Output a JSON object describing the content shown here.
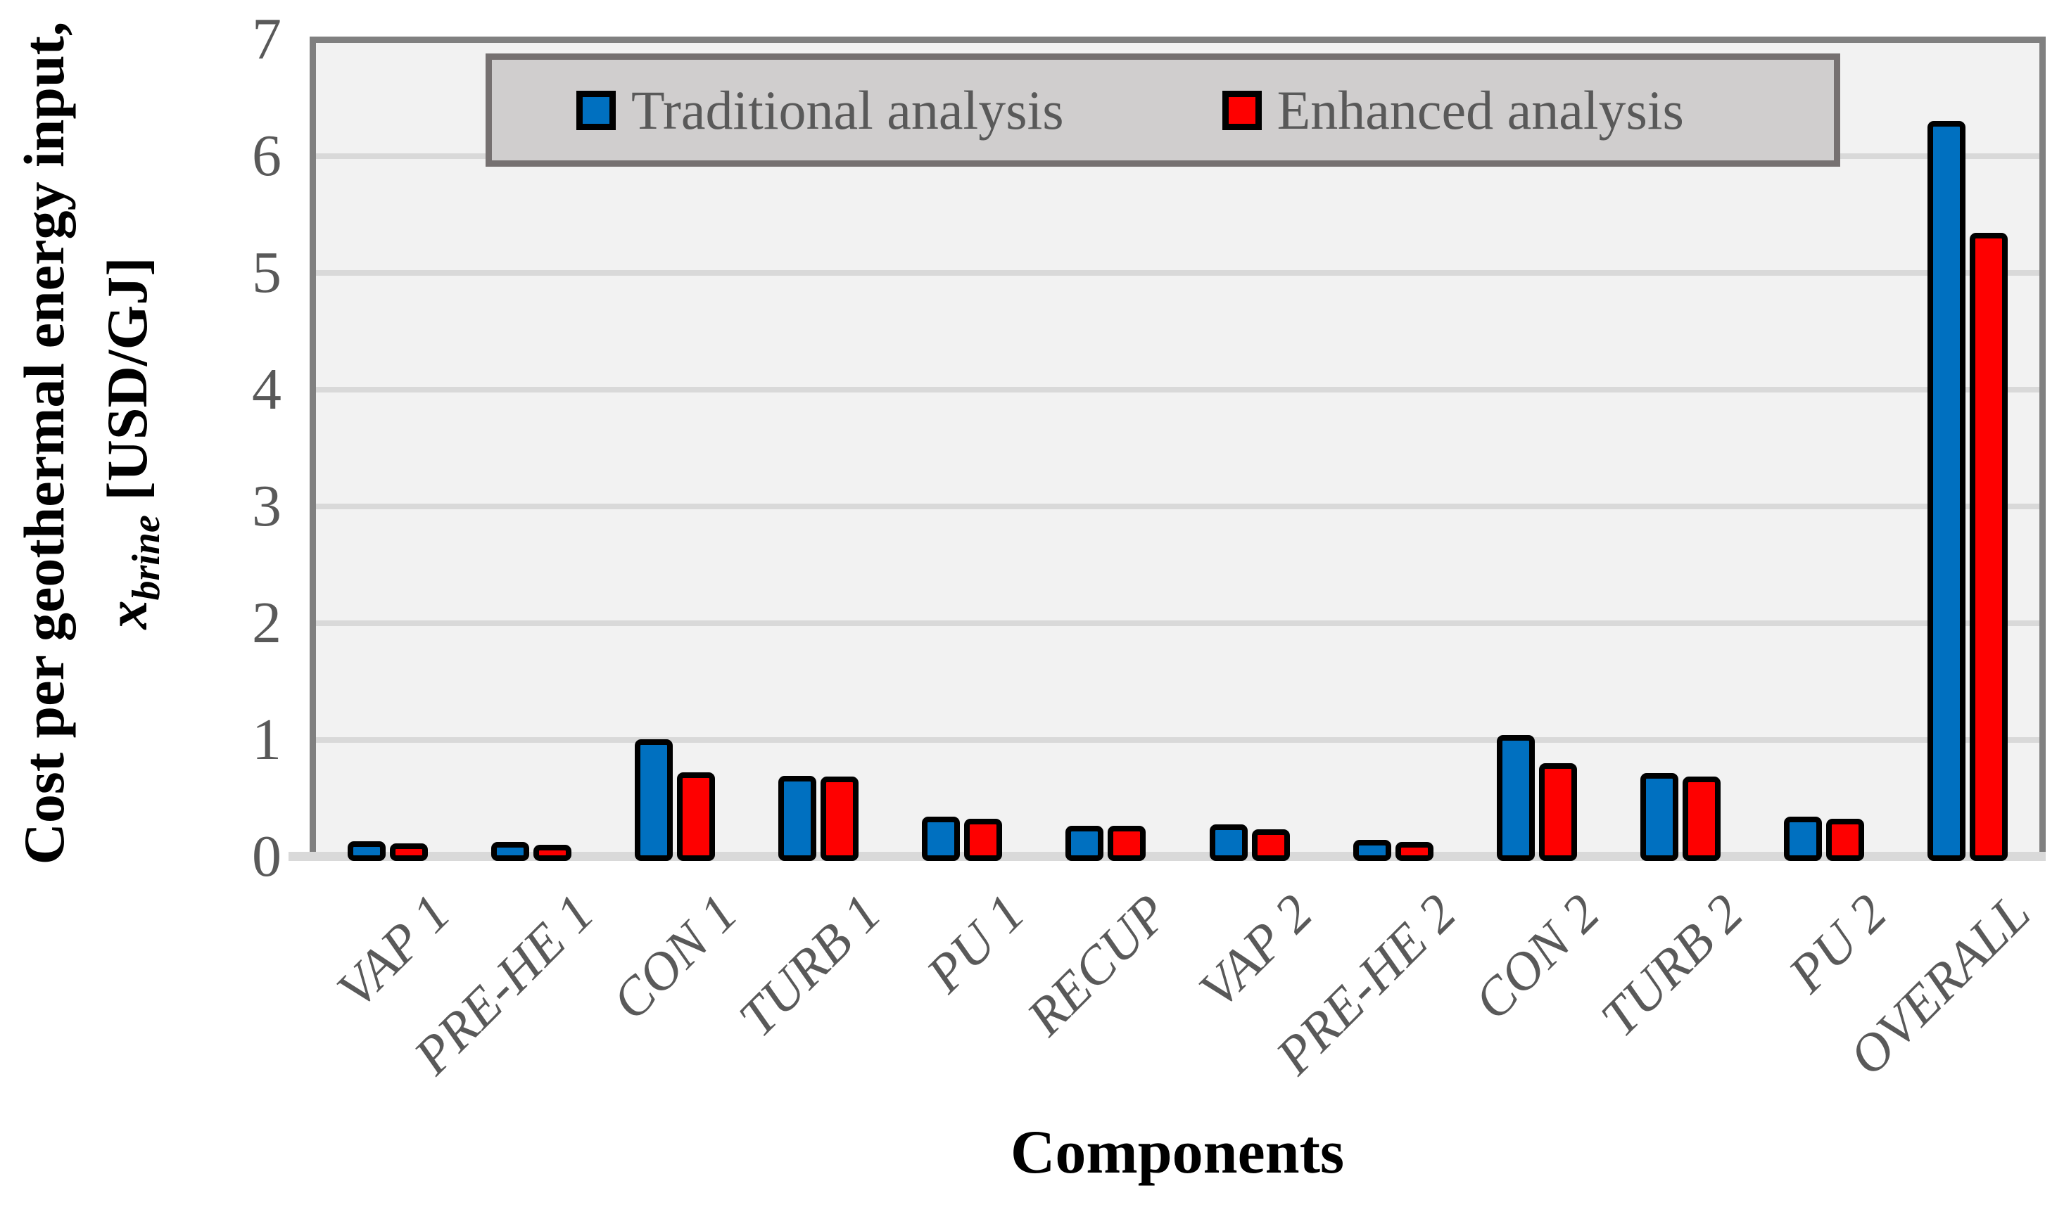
{
  "chart_data": {
    "type": "bar",
    "title": "",
    "xlabel": "Components",
    "ylabel_line1": "Cost per geothermal energy input,",
    "ylabel_math_var": "x",
    "ylabel_math_sub": "brine",
    "ylabel_units": "[USD/GJ]",
    "categories": [
      "VAP 1",
      "PRE-HE 1",
      "CON 1",
      "TURB 1",
      "PU 1",
      "RECUP",
      "VAP 2",
      "PRE-HE 2",
      "CON 2",
      "TURB 2",
      "PU 2",
      "OVERALL"
    ],
    "series": [
      {
        "name": "Traditional analysis",
        "color": "#0070C0",
        "values": [
          0.11,
          0.1,
          0.98,
          0.67,
          0.32,
          0.24,
          0.25,
          0.12,
          1.02,
          0.69,
          0.32,
          6.28
        ]
      },
      {
        "name": "Enhanced analysis",
        "color": "#FE0000",
        "values": [
          0.09,
          0.08,
          0.7,
          0.66,
          0.3,
          0.24,
          0.21,
          0.1,
          0.78,
          0.66,
          0.3,
          5.32
        ]
      }
    ],
    "ylim": [
      0,
      7
    ],
    "yticks": [
      0,
      1,
      2,
      3,
      4,
      5,
      6,
      7
    ],
    "grid": "horizontal",
    "legend_position": "top-center-inside"
  },
  "colors": {
    "plot_background": "#F2F2F2",
    "figure_background": "#FFFFFF",
    "gridline": "#D9D9D9",
    "plot_border": "#808080",
    "bar_border": "#000000",
    "legend_fill": "#D0CECE",
    "legend_border": "#767171",
    "axis_text": "#595959",
    "title_text": "#000000"
  }
}
